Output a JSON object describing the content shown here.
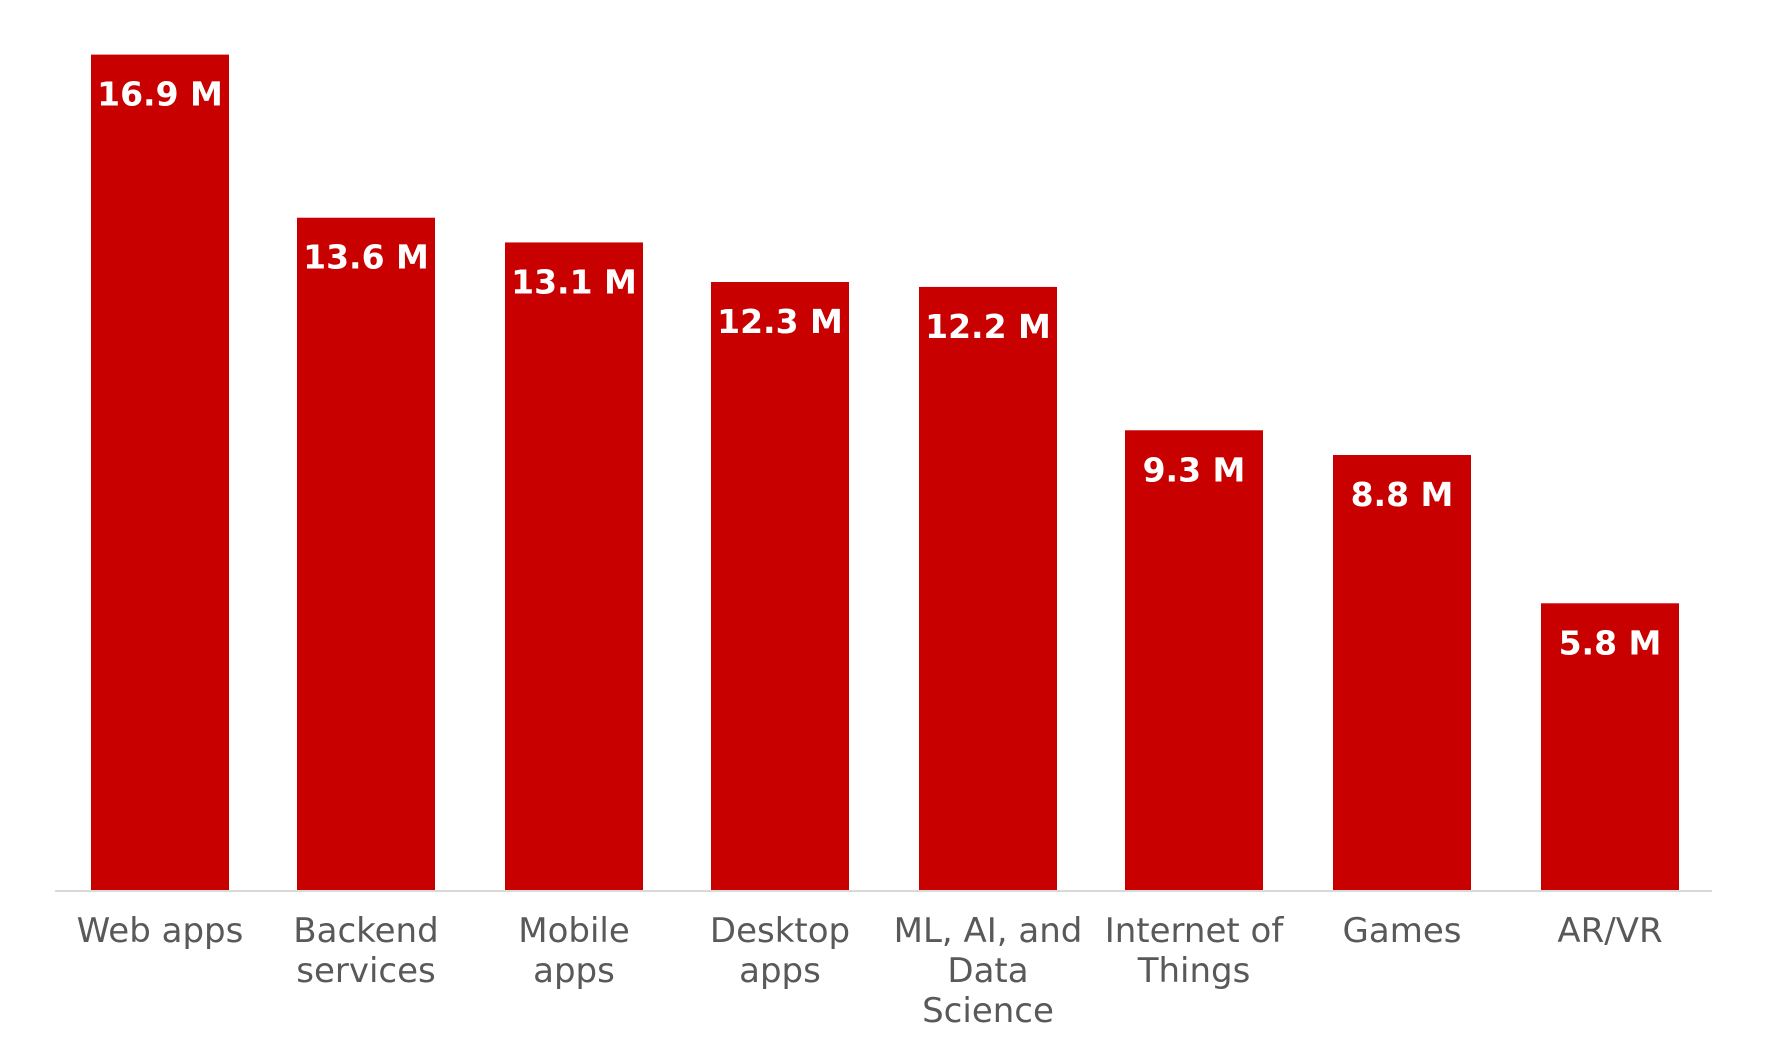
{
  "chart_data": {
    "type": "bar",
    "title": "",
    "xlabel": "",
    "ylabel": "",
    "ylim": [
      0,
      17.6
    ],
    "unit_suffix": " M",
    "bar_color": "#c90000",
    "axis_color": "#d9d9d9",
    "label_color": "#595959",
    "value_label_color": "#ffffff",
    "grid": false,
    "categories": [
      [
        "Web apps"
      ],
      [
        "Backend",
        "services"
      ],
      [
        "Mobile",
        "apps"
      ],
      [
        "Desktop",
        "apps"
      ],
      [
        "ML, AI, and",
        "Data",
        "Science"
      ],
      [
        "Internet of",
        "Things"
      ],
      [
        "Games"
      ],
      [
        "AR/VR"
      ]
    ],
    "values": [
      16.9,
      13.6,
      13.1,
      12.3,
      12.2,
      9.3,
      8.8,
      5.8
    ],
    "value_labels": [
      "16.9 M",
      "13.6 M",
      "13.1 M",
      "12.3 M",
      "12.2 M",
      "9.3 M",
      "8.8 M",
      "5.8 M"
    ]
  }
}
